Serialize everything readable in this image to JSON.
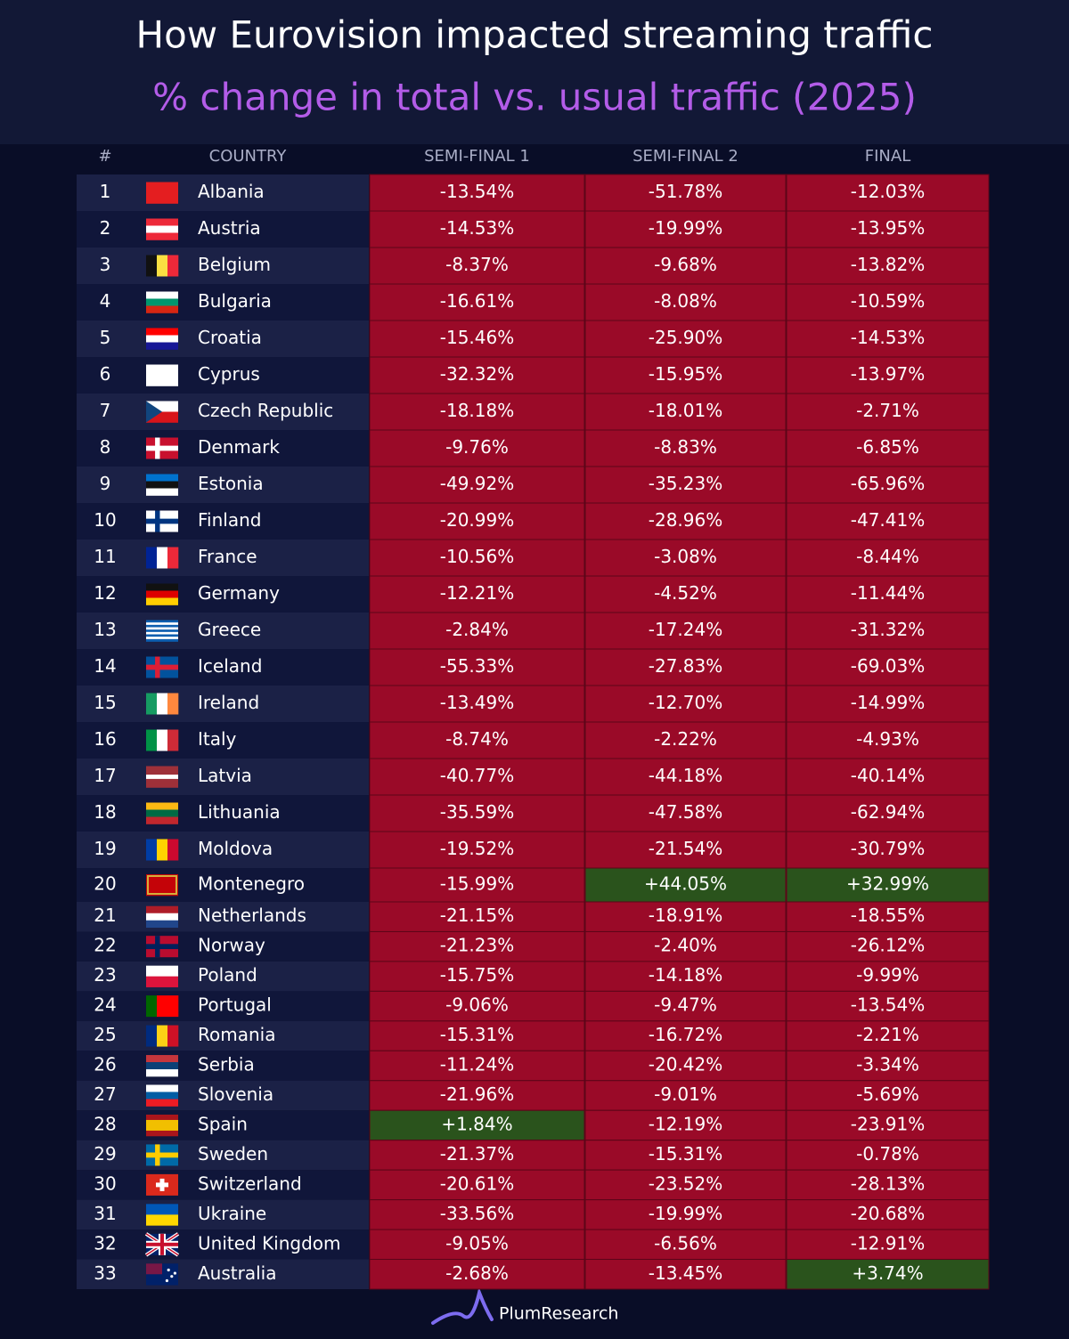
{
  "header": {
    "title": "How Eurovision impacted streaming traffic",
    "subtitle": "% change in total vs. usual traffic (2025)"
  },
  "table": {
    "columns": [
      "#",
      "COUNTRY",
      "SEMI-FINAL 1",
      "SEMI-FINAL 2",
      "FINAL"
    ],
    "rows": [
      [
        "1",
        "Albania",
        "-13.54%",
        "-51.78%",
        "-12.03%"
      ],
      [
        "2",
        "Austria",
        "-14.53%",
        "-19.99%",
        "-13.95%"
      ],
      [
        "3",
        "Belgium",
        "-8.37%",
        "-9.68%",
        "-13.82%"
      ],
      [
        "4",
        "Bulgaria",
        "-16.61%",
        "-8.08%",
        "-10.59%"
      ],
      [
        "5",
        "Croatia",
        "-15.46%",
        "-25.90%",
        "-14.53%"
      ],
      [
        "6",
        "Cyprus",
        "-32.32%",
        "-15.95%",
        "-13.97%"
      ],
      [
        "7",
        "Czech Republic",
        "-18.18%",
        "-18.01%",
        "-2.71%"
      ],
      [
        "8",
        "Denmark",
        "-9.76%",
        "-8.83%",
        "-6.85%"
      ],
      [
        "9",
        "Estonia",
        "-49.92%",
        "-35.23%",
        "-65.96%"
      ],
      [
        "10",
        "Finland",
        "-20.99%",
        "-28.96%",
        "-47.41%"
      ],
      [
        "11",
        "France",
        "-10.56%",
        "-3.08%",
        "-8.44%"
      ],
      [
        "12",
        "Germany",
        "-12.21%",
        "-4.52%",
        "-11.44%"
      ],
      [
        "13",
        "Greece",
        "-2.84%",
        "-17.24%",
        "-31.32%"
      ],
      [
        "14",
        "Iceland",
        "-55.33%",
        "-27.83%",
        "-69.03%"
      ],
      [
        "15",
        "Ireland",
        "-13.49%",
        "-12.70%",
        "-14.99%"
      ],
      [
        "16",
        "Italy",
        "-8.74%",
        "-2.22%",
        "-4.93%"
      ],
      [
        "17",
        "Latvia",
        "-40.77%",
        "-44.18%",
        "-40.14%"
      ],
      [
        "18",
        "Lithuania",
        "-35.59%",
        "-47.58%",
        "-62.94%"
      ],
      [
        "19",
        "Moldova",
        "-19.52%",
        "-21.54%",
        "-30.79%"
      ],
      [
        "20",
        "Montenegro",
        "-15.99%",
        "+44.05%",
        "+32.99%"
      ],
      [
        "21",
        "Netherlands",
        "-21.15%",
        "-18.91%",
        "-18.55%"
      ],
      [
        "22",
        "Norway",
        "-21.23%",
        "-2.40%",
        "-26.12%"
      ],
      [
        "23",
        "Poland",
        "-15.75%",
        "-14.18%",
        "-9.99%"
      ],
      [
        "24",
        "Portugal",
        "-9.06%",
        "-9.47%",
        "-13.54%"
      ],
      [
        "25",
        "Romania",
        "-15.31%",
        "-16.72%",
        "-2.21%"
      ],
      [
        "26",
        "Serbia",
        "-11.24%",
        "-20.42%",
        "-3.34%"
      ],
      [
        "27",
        "Slovenia",
        "-21.96%",
        "-9.01%",
        "-5.69%"
      ],
      [
        "28",
        "Spain",
        "+1.84%",
        "-12.19%",
        "-23.91%"
      ],
      [
        "29",
        "Sweden",
        "-21.37%",
        "-15.31%",
        "-0.78%"
      ],
      [
        "30",
        "Switzerland",
        "-20.61%",
        "-23.52%",
        "-28.13%"
      ],
      [
        "31",
        "Ukraine",
        "-33.56%",
        "-19.99%",
        "-20.68%"
      ],
      [
        "32",
        "United Kingdom",
        "-9.05%",
        "-6.56%",
        "-12.91%"
      ],
      [
        "33",
        "Australia",
        "-2.68%",
        "-13.45%",
        "+3.74%"
      ]
    ]
  },
  "footer": {
    "brand": "PlumResearch"
  }
}
